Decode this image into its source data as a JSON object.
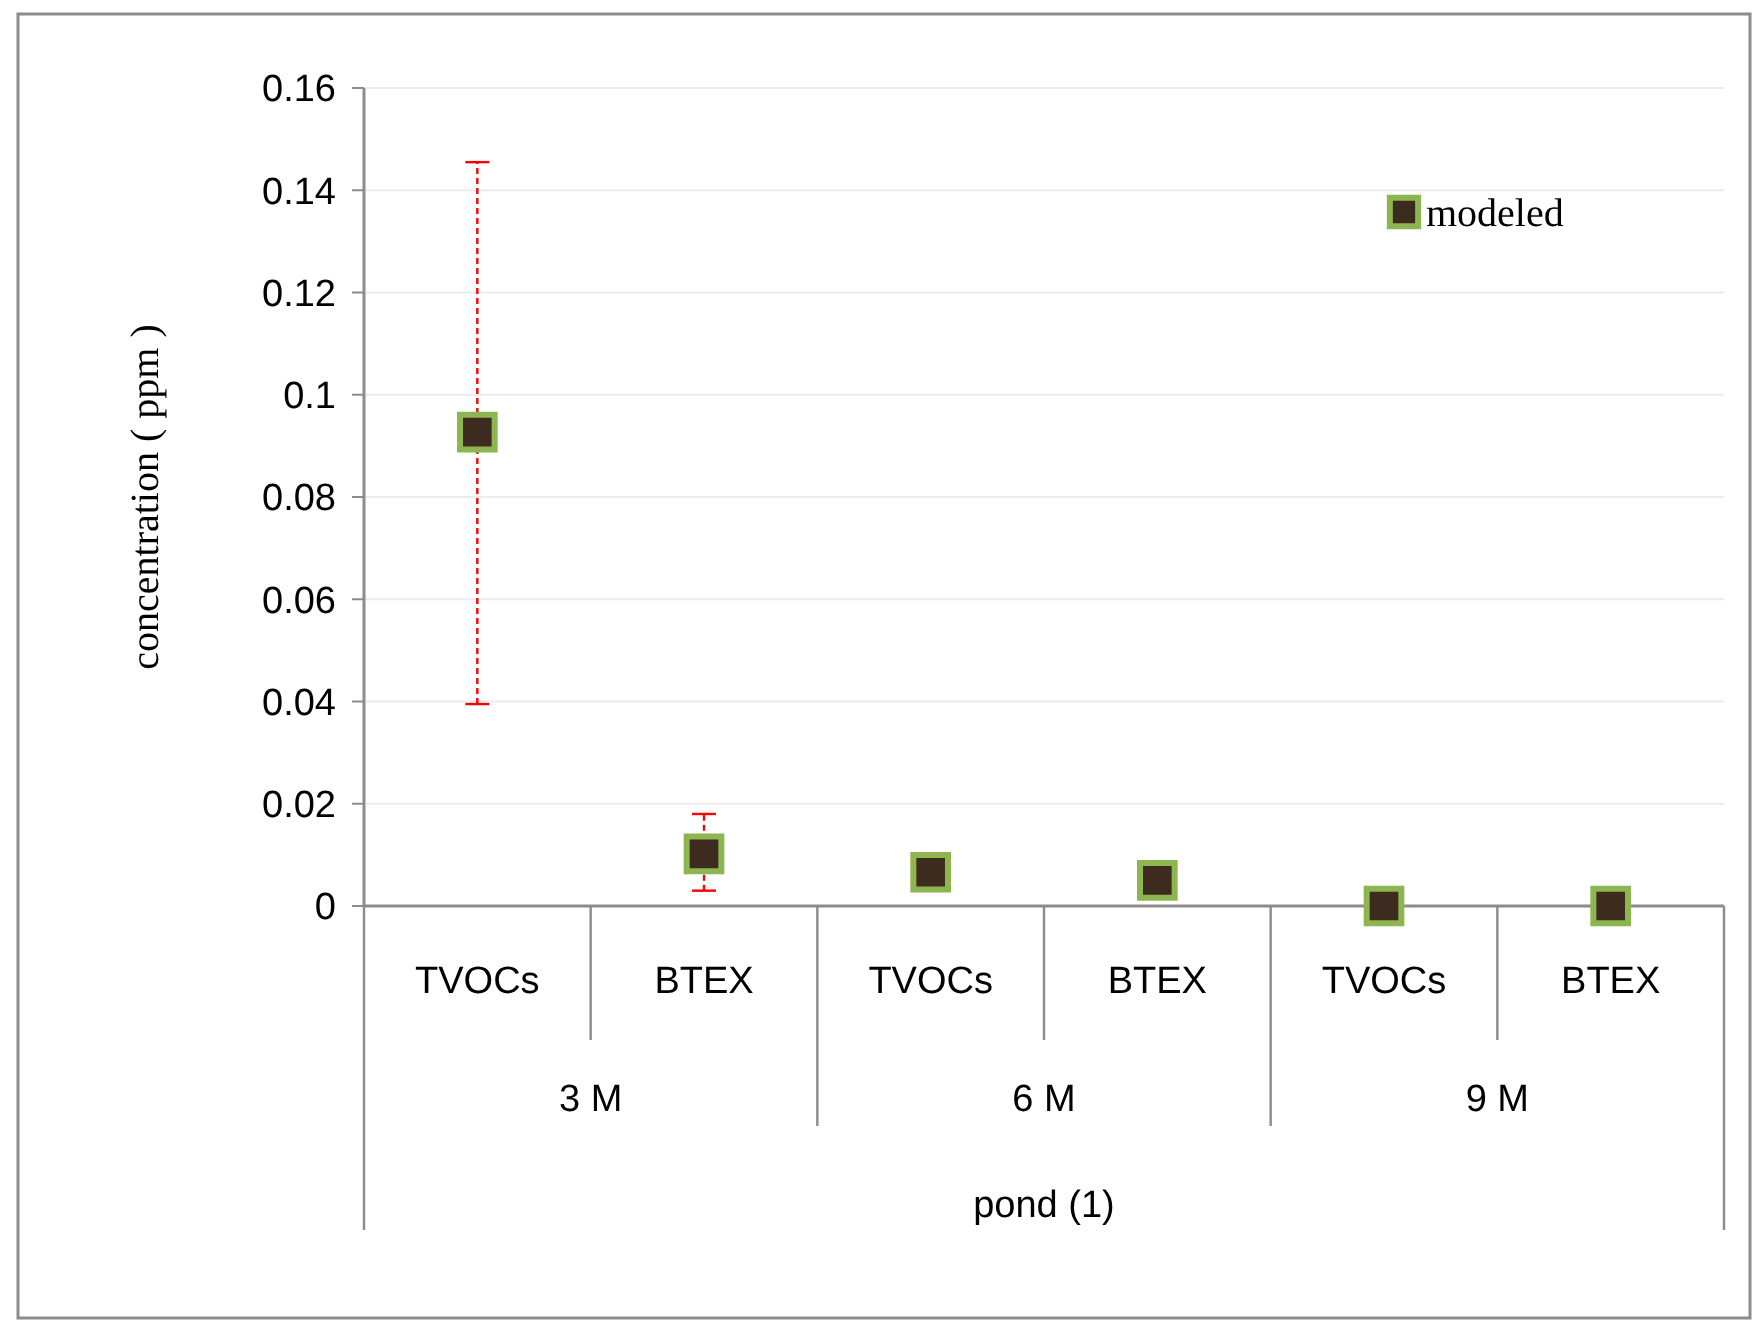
{
  "chart_data": {
    "type": "scatter",
    "ylabel": "concentration ( ppm )",
    "xlabel": "pond (1)",
    "categories": [
      "TVOCs",
      "BTEX",
      "TVOCs",
      "BTEX",
      "TVOCs",
      "BTEX"
    ],
    "annotations": [
      "3 M",
      "6 M",
      "9 M"
    ],
    "series": [
      {
        "name": "modeled",
        "color": "#3d2b1f",
        "values": [
          0.0927,
          0.0102,
          0.0066,
          0.005,
          0,
          0
        ],
        "errors": [
          [
            0.0395,
            0.1455
          ],
          [
            0.003,
            0.018
          ],
          null,
          null,
          null,
          null
        ]
      }
    ],
    "ylim": [
      0,
      0.16
    ],
    "yticks": [
      0,
      0.02,
      0.04,
      0.06,
      0.08,
      0.1,
      0.12,
      0.14,
      0.16
    ],
    "grid": "y",
    "legend": "top right",
    "marker": "square"
  }
}
